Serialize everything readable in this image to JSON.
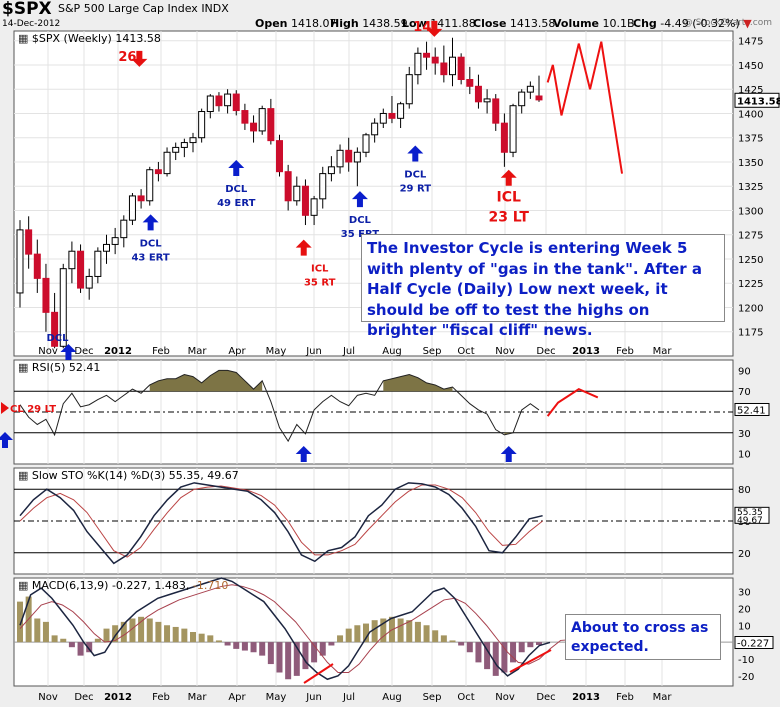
{
  "header": {
    "symbol": "$SPX",
    "name": "S&P 500 Large Cap Index",
    "exchange": "INDX",
    "date": "14-Dec-2012",
    "source": "@ StockCharts.com",
    "quote": [
      {
        "label": "Open",
        "value": "1418.07"
      },
      {
        "label": "High",
        "value": "1438.59"
      },
      {
        "label": "Low",
        "value": "1411.88"
      },
      {
        "label": "Close",
        "value": "1413.58"
      },
      {
        "label": "Volume",
        "value": "10.1B"
      },
      {
        "label": "Chg",
        "value": "-4.49 (-0.32%)"
      }
    ]
  },
  "price_panel": {
    "legend": "$SPX (Weekly) 1413.58",
    "last_value": "1413.58"
  },
  "rsi_panel": {
    "legend": "RSI(5) 52.41",
    "last_value": "52.41"
  },
  "sto_panel": {
    "legend": "Slow STO %K(14) %D(3) 55.35, 49.67",
    "last_k": "55.35",
    "last_d": "49.67"
  },
  "macd_panel": {
    "legend_main": "MACD(6,13,9) -0.227, 1.483, ",
    "legend_hist": "-1.710",
    "last_value": "-0.227"
  },
  "annotation_main": "The Investor Cycle is entering Week 5 with plenty of \"gas in the tank\".  After a Half Cycle (Daily) Low next week, it should be off to test the highs on brighter \"fiscal cliff\" news.",
  "annotation_macd": "About to cross as expected.",
  "colors": {
    "up": "#ffffff",
    "down": "#cc0d2c",
    "arrow_blue": "#0a1ecc",
    "arrow_red": "#e61010",
    "label_blue": "#0c1fa6",
    "projection": "#ee1111",
    "rsi_fill": "#7d7445",
    "hist": "#8f5b7a",
    "macd_line": "#1c2540",
    "signal": "#a8414e"
  },
  "chart_data": [
    {
      "type": "candlestick",
      "title": "$SPX (Weekly) 1413.58",
      "x_labels": [
        "Nov",
        "Dec",
        "2012",
        "Feb",
        "Mar",
        "Apr",
        "May",
        "Jun",
        "Jul",
        "Aug",
        "Sep",
        "Oct",
        "Nov",
        "Dec",
        "2013",
        "Feb",
        "Mar"
      ],
      "ylim": [
        1150,
        1485
      ],
      "y_ticks": [
        1175,
        1200,
        1225,
        1250,
        1275,
        1300,
        1325,
        1350,
        1375,
        1400,
        1425,
        1450,
        1475
      ],
      "candles": [
        [
          1215,
          1290,
          1200,
          1280
        ],
        [
          1280,
          1294,
          1240,
          1255
        ],
        [
          1255,
          1270,
          1215,
          1230
        ],
        [
          1230,
          1245,
          1175,
          1195
        ],
        [
          1195,
          1215,
          1158,
          1160
        ],
        [
          1160,
          1245,
          1158,
          1240
        ],
        [
          1240,
          1268,
          1225,
          1258
        ],
        [
          1258,
          1265,
          1215,
          1220
        ],
        [
          1220,
          1240,
          1208,
          1232
        ],
        [
          1232,
          1262,
          1225,
          1258
        ],
        [
          1258,
          1275,
          1245,
          1265
        ],
        [
          1265,
          1282,
          1255,
          1272
        ],
        [
          1272,
          1295,
          1262,
          1290
        ],
        [
          1290,
          1318,
          1285,
          1315
        ],
        [
          1315,
          1322,
          1302,
          1310
        ],
        [
          1310,
          1345,
          1305,
          1342
        ],
        [
          1342,
          1350,
          1330,
          1338
        ],
        [
          1338,
          1365,
          1335,
          1360
        ],
        [
          1360,
          1370,
          1352,
          1365
        ],
        [
          1365,
          1374,
          1355,
          1370
        ],
        [
          1370,
          1380,
          1360,
          1375
        ],
        [
          1375,
          1405,
          1370,
          1402
        ],
        [
          1402,
          1420,
          1395,
          1418
        ],
        [
          1418,
          1422,
          1402,
          1408
        ],
        [
          1408,
          1425,
          1400,
          1420
        ],
        [
          1420,
          1424,
          1398,
          1403
        ],
        [
          1403,
          1410,
          1383,
          1390
        ],
        [
          1390,
          1398,
          1370,
          1382
        ],
        [
          1382,
          1408,
          1378,
          1405
        ],
        [
          1405,
          1415,
          1368,
          1372
        ],
        [
          1372,
          1378,
          1335,
          1340
        ],
        [
          1340,
          1347,
          1300,
          1310
        ],
        [
          1310,
          1335,
          1305,
          1325
        ],
        [
          1325,
          1332,
          1285,
          1295
        ],
        [
          1295,
          1315,
          1285,
          1312
        ],
        [
          1312,
          1345,
          1302,
          1338
        ],
        [
          1338,
          1356,
          1330,
          1345
        ],
        [
          1345,
          1368,
          1338,
          1362
        ],
        [
          1362,
          1375,
          1340,
          1350
        ],
        [
          1350,
          1365,
          1325,
          1360
        ],
        [
          1360,
          1380,
          1355,
          1378
        ],
        [
          1378,
          1395,
          1370,
          1390
        ],
        [
          1390,
          1405,
          1385,
          1400
        ],
        [
          1400,
          1418,
          1390,
          1395
        ],
        [
          1395,
          1412,
          1385,
          1410
        ],
        [
          1410,
          1448,
          1405,
          1440
        ],
        [
          1440,
          1468,
          1430,
          1462
        ],
        [
          1462,
          1474,
          1445,
          1458
        ],
        [
          1458,
          1468,
          1440,
          1452
        ],
        [
          1452,
          1470,
          1432,
          1440
        ],
        [
          1440,
          1478,
          1428,
          1458
        ],
        [
          1458,
          1462,
          1430,
          1435
        ],
        [
          1435,
          1448,
          1420,
          1428
        ],
        [
          1428,
          1440,
          1405,
          1412
        ],
        [
          1412,
          1425,
          1400,
          1415
        ],
        [
          1415,
          1420,
          1382,
          1390
        ],
        [
          1390,
          1400,
          1345,
          1360
        ],
        [
          1360,
          1410,
          1355,
          1408
        ],
        [
          1408,
          1425,
          1400,
          1422
        ],
        [
          1422,
          1433,
          1415,
          1428
        ],
        [
          1418,
          1439,
          1412,
          1414
        ]
      ],
      "projection": [
        [
          61,
          1432
        ],
        [
          61.6,
          1450
        ],
        [
          62.6,
          1398
        ],
        [
          64.6,
          1472
        ],
        [
          65.9,
          1425
        ],
        [
          67.2,
          1474
        ],
        [
          69.6,
          1338
        ]
      ],
      "annotations": [
        {
          "text": "26",
          "color": "red",
          "arrow": "down",
          "at": [
            13.8,
            1448
          ]
        },
        {
          "text": "14",
          "color": "red",
          "arrow": "down",
          "at": [
            47.9,
            1479
          ]
        },
        {
          "text": "DCL",
          "sub": "43 ERT",
          "color": "blue",
          "arrow": "up",
          "at": [
            15.1,
            1296
          ]
        },
        {
          "text": "DCL",
          "sub": "49 ERT",
          "color": "blue",
          "arrow": "up",
          "at": [
            25.0,
            1352
          ]
        },
        {
          "text": "ICL",
          "sub": "35 RT",
          "color": "red",
          "arrow": "up",
          "at": [
            32.8,
            1270
          ]
        },
        {
          "text": "DCL",
          "sub": "35 ERT",
          "color": "blue",
          "arrow": "up",
          "at": [
            39.3,
            1320
          ]
        },
        {
          "text": "DCL",
          "sub": "29 RT",
          "color": "blue",
          "arrow": "up",
          "at": [
            45.7,
            1367
          ]
        },
        {
          "text": "ICL",
          "sub": "23 LT",
          "color": "red",
          "arrow": "up",
          "at": [
            56.5,
            1342
          ]
        },
        {
          "text": "DCL",
          "color": "blue",
          "arrow": "up",
          "at": [
            5.6,
            1150
          ]
        }
      ]
    },
    {
      "type": "line",
      "title": "RSI(5) 52.41",
      "ylim": [
        0,
        100
      ],
      "y_ticks": [
        10,
        30,
        50,
        70,
        90
      ],
      "levels": [
        70,
        50,
        30
      ],
      "values": [
        57,
        45,
        38,
        43,
        28,
        58,
        68,
        55,
        57,
        62,
        66,
        60,
        66,
        72,
        68,
        76,
        80,
        82,
        82,
        86,
        84,
        78,
        85,
        90,
        90,
        88,
        80,
        72,
        80,
        60,
        35,
        22,
        38,
        29,
        52,
        60,
        66,
        60,
        56,
        66,
        68,
        66,
        80,
        82,
        84,
        86,
        83,
        78,
        76,
        72,
        74,
        66,
        58,
        52,
        48,
        33,
        28,
        30,
        52,
        58,
        52
      ],
      "projection": [
        [
          61,
          46
        ],
        [
          62.2,
          59
        ],
        [
          64.6,
          72
        ],
        [
          66.8,
          64
        ]
      ],
      "left_labels": [
        {
          "text": "CL 29 LT",
          "color": "red"
        }
      ]
    },
    {
      "type": "line",
      "title": "Slow STO %K(14) %D(3) 55.35, 49.67",
      "ylim": [
        0,
        100
      ],
      "y_ticks": [
        20,
        50,
        80
      ],
      "levels": [
        80,
        50,
        20
      ],
      "series": [
        {
          "name": "%K",
          "values": [
            55,
            70,
            80,
            72,
            60,
            40,
            25,
            10,
            18,
            35,
            55,
            70,
            82,
            86,
            84,
            82,
            80,
            78,
            70,
            58,
            40,
            18,
            12,
            22,
            25,
            35,
            55,
            65,
            80,
            86,
            85,
            82,
            75,
            62,
            45,
            22,
            20,
            35,
            52,
            55
          ]
        },
        {
          "name": "%D",
          "values": [
            50,
            62,
            72,
            76,
            70,
            58,
            40,
            22,
            16,
            25,
            42,
            58,
            72,
            80,
            82,
            83,
            81,
            79,
            74,
            65,
            50,
            30,
            18,
            18,
            22,
            28,
            42,
            55,
            68,
            78,
            84,
            84,
            80,
            72,
            58,
            40,
            27,
            28,
            40,
            50
          ]
        }
      ]
    },
    {
      "type": "bar",
      "title": "MACD(6,13,9) -0.227, 1.483, -1.710",
      "ylim": [
        -26,
        38
      ],
      "y_ticks": [
        -20,
        -10,
        0,
        10,
        20,
        30
      ],
      "histogram": [
        24,
        27,
        14,
        12,
        4,
        2,
        -3,
        -8,
        -6,
        2,
        8,
        10,
        12,
        14,
        15,
        14,
        12,
        10,
        9,
        8,
        6,
        5,
        4,
        1,
        -2,
        -4,
        -5,
        -6,
        -8,
        -13,
        -18,
        -22,
        -20,
        -16,
        -12,
        -8,
        -2,
        4,
        8,
        10,
        11,
        13,
        14,
        15,
        14,
        13,
        12,
        10,
        7,
        4,
        1,
        -2,
        -6,
        -12,
        -16,
        -20,
        -18,
        -12,
        -6,
        -3,
        -1.7
      ],
      "macd": [
        10,
        28,
        32,
        26,
        18,
        10,
        0,
        -8,
        -6,
        4,
        12,
        18,
        22,
        26,
        28,
        30,
        32,
        34,
        36,
        38,
        36,
        32,
        28,
        24,
        16,
        8,
        -2,
        -12,
        -18,
        -22,
        -20,
        -14,
        -4,
        6,
        10,
        14,
        16,
        18,
        24,
        30,
        32,
        26,
        16,
        6,
        -4,
        -14,
        -20,
        -16,
        -8,
        -2,
        -0.2
      ],
      "signal": [
        8,
        15,
        22,
        24,
        22,
        18,
        12,
        5,
        0,
        1,
        5,
        10,
        15,
        19,
        22,
        25,
        27,
        29,
        31,
        33,
        34,
        33,
        31,
        28,
        24,
        18,
        12,
        4,
        -4,
        -12,
        -18,
        -18,
        -13,
        -5,
        2,
        7,
        10,
        13,
        17,
        21,
        25,
        26,
        23,
        17,
        10,
        2,
        -6,
        -12,
        -13,
        -10,
        -4,
        1,
        1.5
      ],
      "trendlines": [
        {
          "color": "red"
        },
        {
          "color": "red"
        }
      ]
    }
  ]
}
